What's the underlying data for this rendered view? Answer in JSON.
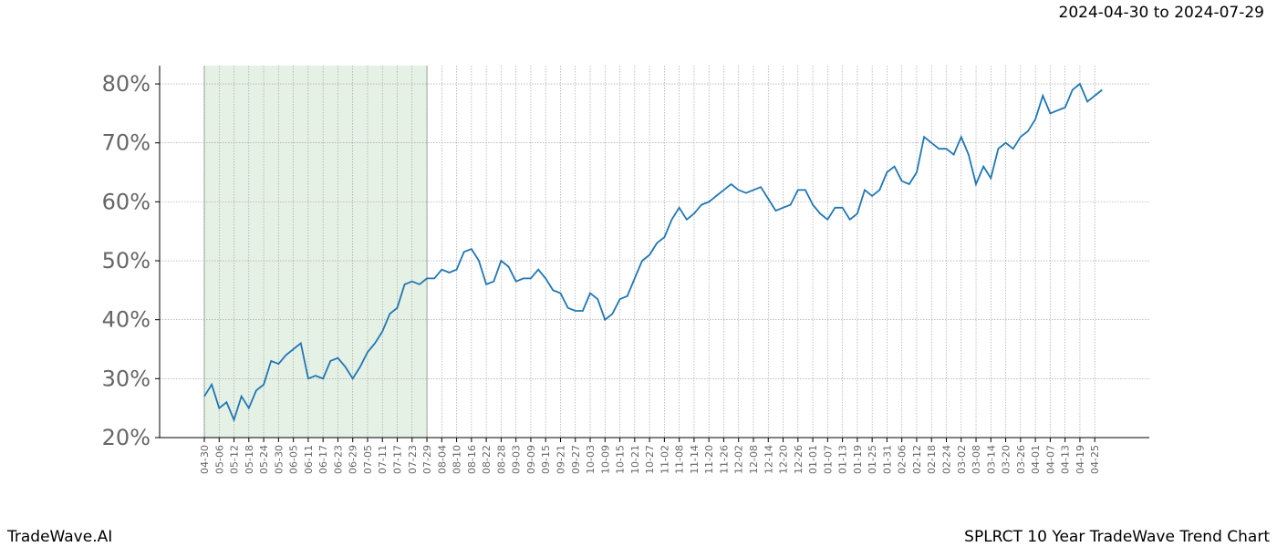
{
  "header": {
    "date_range": "2024-04-30 to 2024-07-29"
  },
  "footer": {
    "brand": "TradeWave.AI",
    "caption": "SPLRCT 10 Year TradeWave Trend Chart"
  },
  "chart_data": {
    "type": "line",
    "color": "#1f77b4",
    "grid": true,
    "shade": {
      "from": "04-30",
      "to": "07-29",
      "color": "#e6f1e6"
    },
    "ylim": [
      20,
      83.1
    ],
    "yticks": [
      {
        "value": 20,
        "label": "20%"
      },
      {
        "value": 30,
        "label": "30%"
      },
      {
        "value": 40,
        "label": "40%"
      },
      {
        "value": 50,
        "label": "50%"
      },
      {
        "value": 60,
        "label": "60%"
      },
      {
        "value": 70,
        "label": "70%"
      },
      {
        "value": 80,
        "label": "80%"
      }
    ],
    "categories": [
      "04-30",
      null,
      "05-06",
      null,
      "05-12",
      null,
      "05-18",
      null,
      "05-24",
      null,
      "05-30",
      null,
      "06-05",
      null,
      "06-11",
      null,
      "06-17",
      null,
      "06-23",
      null,
      "06-29",
      null,
      "07-05",
      null,
      "07-11",
      null,
      "07-17",
      null,
      "07-23",
      null,
      "07-29",
      null,
      "08-04",
      null,
      "08-10",
      null,
      "08-16",
      null,
      "08-22",
      null,
      "08-28",
      null,
      "09-03",
      null,
      "09-09",
      null,
      "09-15",
      null,
      "09-21",
      null,
      "09-27",
      null,
      "10-03",
      null,
      "10-09",
      null,
      "10-15",
      null,
      "10-21",
      null,
      "10-27",
      null,
      "11-02",
      null,
      "11-08",
      null,
      "11-14",
      null,
      "11-20",
      null,
      "11-26",
      null,
      "12-02",
      null,
      "12-08",
      null,
      "12-14",
      null,
      "12-20",
      null,
      "12-26",
      null,
      "01-01",
      null,
      "01-07",
      null,
      "01-13",
      null,
      "01-19",
      null,
      "01-25",
      null,
      "01-31",
      null,
      "02-06",
      null,
      "02-12",
      null,
      "02-18",
      null,
      "02-24",
      null,
      "03-02",
      null,
      "03-08",
      null,
      "03-14",
      null,
      "03-20",
      null,
      "03-26",
      null,
      "04-01",
      null,
      "04-07",
      null,
      "04-13",
      null,
      "04-19",
      null,
      "04-25",
      null
    ],
    "values": [
      27,
      29,
      25,
      26,
      23,
      27,
      25,
      28,
      29,
      33,
      32.5,
      34,
      35,
      36,
      30,
      30.5,
      30,
      33,
      33.5,
      32,
      30,
      32,
      34.5,
      36,
      38,
      41,
      42,
      46,
      46.5,
      46,
      47,
      47,
      48.5,
      48,
      48.5,
      51.5,
      52,
      50,
      46,
      46.5,
      50,
      49,
      46.5,
      47,
      47,
      48.5,
      47,
      45,
      44.5,
      42,
      41.5,
      41.5,
      44.5,
      43.5,
      40,
      41,
      43.5,
      44,
      47,
      50,
      51,
      53,
      54,
      57,
      59,
      57,
      58,
      59.5,
      60,
      61,
      62,
      63,
      62,
      61.5,
      62,
      62.5,
      60.5,
      58.5,
      59,
      59.5,
      62,
      62,
      59.5,
      58,
      57,
      59,
      59,
      57,
      58,
      62,
      61,
      62,
      65,
      66,
      63.5,
      63,
      65,
      71,
      70,
      69,
      69,
      68,
      71,
      68,
      63,
      66,
      64,
      69,
      70,
      69,
      71,
      72,
      74,
      78,
      75,
      75.5,
      76,
      79,
      80,
      77,
      78,
      79
    ]
  }
}
